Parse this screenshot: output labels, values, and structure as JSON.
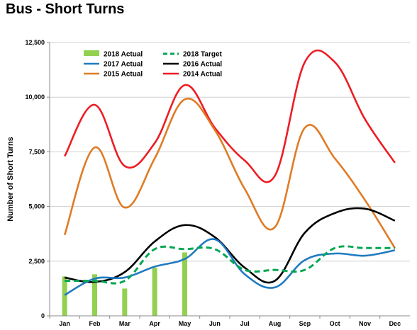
{
  "page": {
    "title": "Bus - Short Turns"
  },
  "chart_data": {
    "type": "line",
    "title": "Bus - Short Turns",
    "xlabel": "",
    "ylabel": "Number of Short Turns",
    "categories": [
      "Jan",
      "Feb",
      "Mar",
      "Apr",
      "May",
      "Jun",
      "Jul",
      "Aug",
      "Sep",
      "Oct",
      "Nov",
      "Dec"
    ],
    "ylim": [
      0,
      12500
    ],
    "yticks": [
      0,
      2500,
      5000,
      7500,
      10000,
      12500
    ],
    "ytick_labels": [
      "0",
      "2,500",
      "5,000",
      "7,500",
      "10,000",
      "12,500"
    ],
    "grid": true,
    "legend_position": "top-left",
    "series": [
      {
        "name": "2018 Actual",
        "kind": "bar",
        "color": "#92d050",
        "values": [
          1800,
          1900,
          1250,
          2200,
          2900,
          null,
          null,
          null,
          null,
          null,
          null,
          null
        ]
      },
      {
        "name": "2018 Target",
        "kind": "dashed",
        "color": "#00a651",
        "values": [
          1600,
          1600,
          1600,
          3050,
          3050,
          3050,
          2100,
          2100,
          2100,
          3100,
          3100,
          3100
        ]
      },
      {
        "name": "2017 Actual",
        "kind": "line",
        "color": "#1f7bc1",
        "values": [
          950,
          1700,
          1750,
          2250,
          2600,
          3500,
          1900,
          1300,
          2550,
          2850,
          2750,
          3000
        ]
      },
      {
        "name": "2016 Actual",
        "kind": "line",
        "color": "#000000",
        "values": [
          1750,
          1550,
          2000,
          3400,
          4150,
          3600,
          2200,
          1600,
          3800,
          4700,
          4900,
          4350
        ]
      },
      {
        "name": "2015 Actual",
        "kind": "line",
        "color": "#e07b24",
        "values": [
          3700,
          7700,
          4950,
          7200,
          9900,
          8500,
          5800,
          4050,
          8600,
          7200,
          5300,
          3100
        ]
      },
      {
        "name": "2014 Actual",
        "kind": "line",
        "color": "#ee1c24",
        "values": [
          7300,
          9650,
          6850,
          7900,
          10550,
          8600,
          7100,
          6400,
          11600,
          11600,
          9000,
          7000
        ]
      }
    ]
  }
}
